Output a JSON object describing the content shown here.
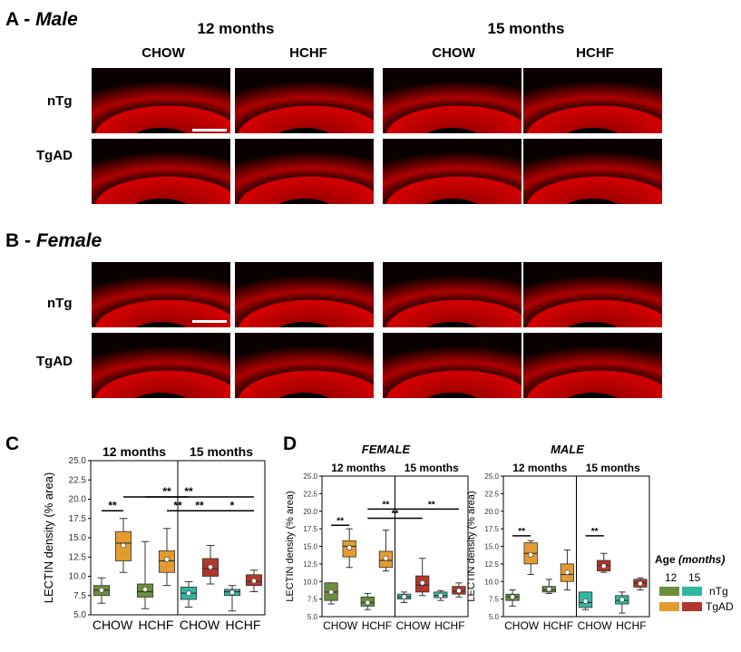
{
  "panelA": {
    "letter": "A -",
    "sex": "Male"
  },
  "panelB": {
    "letter": "B -",
    "sex": "Female"
  },
  "panelC": {
    "letter": "C"
  },
  "panelD": {
    "letter": "D"
  },
  "age_headers": [
    "12 months",
    "15 months"
  ],
  "diet_headers": [
    "CHOW",
    "HCHF",
    "CHOW",
    "HCHF"
  ],
  "row_labels": [
    "nTg",
    "TgAD"
  ],
  "colors": {
    "nTg12": "#6b8e3a",
    "TgAD12": "#e39b2f",
    "nTg15": "#2fb8a0",
    "TgAD15": "#b2362a",
    "tissue": "#c80000"
  },
  "legend": {
    "title": "Age",
    "title_unit": "(months)",
    "ages": [
      "12",
      "15"
    ],
    "genotypes": [
      "nTg",
      "TgAD"
    ]
  },
  "chart_data": [
    {
      "type": "box",
      "panel": "C",
      "ylabel": "LECTIN density (% area)",
      "ylim": [
        5,
        25
      ],
      "yticks": [
        "5.0",
        "7.5",
        "10.0",
        "12.5",
        "15.0",
        "17.5",
        "20.0",
        "22.5",
        "25.0"
      ],
      "facets": [
        "12 months",
        "15 months"
      ],
      "categories": [
        "CHOW",
        "HCHF",
        "CHOW",
        "HCHF"
      ],
      "boxes": [
        {
          "facet": "12 months",
          "category": "CHOW",
          "group": "nTg",
          "min": 6.5,
          "q1": 7.5,
          "median": 8.2,
          "q3": 8.8,
          "max": 9.8,
          "mean": 8.2
        },
        {
          "facet": "12 months",
          "category": "CHOW",
          "group": "TgAD",
          "min": 10.5,
          "q1": 12.0,
          "median": 14.3,
          "q3": 15.8,
          "max": 17.5,
          "mean": 14.0
        },
        {
          "facet": "12 months",
          "category": "HCHF",
          "group": "nTg",
          "min": 5.8,
          "q1": 7.3,
          "median": 8.0,
          "q3": 9.0,
          "max": 14.5,
          "mean": 8.3
        },
        {
          "facet": "12 months",
          "category": "HCHF",
          "group": "TgAD",
          "min": 8.8,
          "q1": 10.5,
          "median": 12.0,
          "q3": 13.3,
          "max": 16.2,
          "mean": 12.2
        },
        {
          "facet": "15 months",
          "category": "CHOW",
          "group": "nTg",
          "min": 6.0,
          "q1": 7.0,
          "median": 7.8,
          "q3": 8.6,
          "max": 9.3,
          "mean": 7.8
        },
        {
          "facet": "15 months",
          "category": "CHOW",
          "group": "TgAD",
          "min": 9.0,
          "q1": 10.0,
          "median": 11.0,
          "q3": 12.3,
          "max": 14.0,
          "mean": 11.2
        },
        {
          "facet": "15 months",
          "category": "HCHF",
          "group": "nTg",
          "min": 5.5,
          "q1": 7.5,
          "median": 8.0,
          "q3": 8.3,
          "max": 8.8,
          "mean": 7.9
        },
        {
          "facet": "15 months",
          "category": "HCHF",
          "group": "TgAD",
          "min": 8.0,
          "q1": 8.8,
          "median": 9.3,
          "q3": 10.2,
          "max": 10.8,
          "mean": 9.4
        }
      ],
      "significance": [
        {
          "label": "**",
          "y": 18.5,
          "from": 0,
          "to": 1
        },
        {
          "label": "**",
          "y": 20.3,
          "from": 2,
          "to": 4
        },
        {
          "label": "**",
          "y": 18.5,
          "from": 3,
          "to": 4
        },
        {
          "label": "**",
          "y": 20.3,
          "from": 1,
          "to": 7
        },
        {
          "label": "**",
          "y": 18.5,
          "from": 4,
          "to": 5
        },
        {
          "label": "*",
          "y": 18.5,
          "from": 5,
          "to": 7
        }
      ]
    },
    {
      "type": "box",
      "panel": "D",
      "title": "FEMALE",
      "ylabel": "LECTIN density (% area)",
      "ylim": [
        5,
        25
      ],
      "yticks": [
        "5.0",
        "7.5",
        "10.0",
        "12.5",
        "15.0",
        "17.5",
        "20.0",
        "22.5",
        "25.0"
      ],
      "facets": [
        "12 months",
        "15 months"
      ],
      "categories": [
        "CHOW",
        "HCHF",
        "CHOW",
        "HCHF"
      ],
      "boxes": [
        {
          "facet": "12 months",
          "category": "CHOW",
          "group": "nTg",
          "min": 6.8,
          "q1": 7.3,
          "median": 8.5,
          "q3": 9.8,
          "max": 9.8,
          "mean": 8.5
        },
        {
          "facet": "12 months",
          "category": "CHOW",
          "group": "TgAD",
          "min": 12.0,
          "q1": 13.5,
          "median": 15.0,
          "q3": 15.8,
          "max": 17.5,
          "mean": 14.8
        },
        {
          "facet": "12 months",
          "category": "HCHF",
          "group": "nTg",
          "min": 6.0,
          "q1": 6.5,
          "median": 7.0,
          "q3": 7.8,
          "max": 8.3,
          "mean": 7.0
        },
        {
          "facet": "12 months",
          "category": "HCHF",
          "group": "TgAD",
          "min": 11.5,
          "q1": 12.0,
          "median": 13.0,
          "q3": 14.3,
          "max": 17.3,
          "mean": 13.3
        },
        {
          "facet": "15 months",
          "category": "CHOW",
          "group": "nTg",
          "min": 7.0,
          "q1": 7.5,
          "median": 7.8,
          "q3": 8.2,
          "max": 8.5,
          "mean": 7.8
        },
        {
          "facet": "15 months",
          "category": "CHOW",
          "group": "TgAD",
          "min": 8.0,
          "q1": 8.5,
          "median": 9.5,
          "q3": 10.8,
          "max": 13.3,
          "mean": 9.8
        },
        {
          "facet": "15 months",
          "category": "HCHF",
          "group": "nTg",
          "min": 7.3,
          "q1": 7.7,
          "median": 8.0,
          "q3": 8.5,
          "max": 8.7,
          "mean": 8.0
        },
        {
          "facet": "15 months",
          "category": "HCHF",
          "group": "TgAD",
          "min": 7.8,
          "q1": 8.2,
          "median": 8.6,
          "q3": 9.3,
          "max": 9.8,
          "mean": 8.7
        }
      ],
      "significance": [
        {
          "label": "**",
          "y": 18.0,
          "from": 0,
          "to": 1
        },
        {
          "label": "**",
          "y": 19.0,
          "from": 2,
          "to": 5
        },
        {
          "label": "**",
          "y": 20.3,
          "from": 2,
          "to": 4
        },
        {
          "label": "**",
          "y": 20.3,
          "from": 4,
          "to": 7
        }
      ]
    },
    {
      "type": "box",
      "panel": "D",
      "title": "MALE",
      "ylabel": "LECTIN density (% area)",
      "ylim": [
        5,
        25
      ],
      "yticks": [
        "5.0",
        "7.5",
        "10.0",
        "12.5",
        "15.0",
        "17.5",
        "20.0",
        "22.5",
        "25.0"
      ],
      "facets": [
        "12 months",
        "15 months"
      ],
      "categories": [
        "CHOW",
        "HCHF",
        "CHOW",
        "HCHF"
      ],
      "boxes": [
        {
          "facet": "12 months",
          "category": "CHOW",
          "group": "nTg",
          "min": 6.5,
          "q1": 7.3,
          "median": 7.8,
          "q3": 8.2,
          "max": 8.8,
          "mean": 7.8
        },
        {
          "facet": "12 months",
          "category": "CHOW",
          "group": "TgAD",
          "min": 11.0,
          "q1": 12.5,
          "median": 14.0,
          "q3": 15.5,
          "max": 15.8,
          "mean": 13.8
        },
        {
          "facet": "12 months",
          "category": "HCHF",
          "group": "nTg",
          "min": 8.3,
          "q1": 8.5,
          "median": 8.8,
          "q3": 9.3,
          "max": 10.3,
          "mean": 8.9
        },
        {
          "facet": "12 months",
          "category": "HCHF",
          "group": "TgAD",
          "min": 8.8,
          "q1": 10.0,
          "median": 11.0,
          "q3": 12.5,
          "max": 14.5,
          "mean": 11.3
        },
        {
          "facet": "15 months",
          "category": "CHOW",
          "group": "nTg",
          "min": 6.0,
          "q1": 6.3,
          "median": 7.0,
          "q3": 8.5,
          "max": 8.5,
          "mean": 7.2
        },
        {
          "facet": "15 months",
          "category": "CHOW",
          "group": "TgAD",
          "min": 11.3,
          "q1": 11.5,
          "median": 12.3,
          "q3": 13.0,
          "max": 14.0,
          "mean": 12.2
        },
        {
          "facet": "15 months",
          "category": "HCHF",
          "group": "nTg",
          "min": 5.5,
          "q1": 6.8,
          "median": 7.3,
          "q3": 8.0,
          "max": 8.5,
          "mean": 7.4
        },
        {
          "facet": "15 months",
          "category": "HCHF",
          "group": "TgAD",
          "min": 8.8,
          "q1": 9.2,
          "median": 9.8,
          "q3": 10.3,
          "max": 10.5,
          "mean": 9.7
        }
      ],
      "significance": [
        {
          "label": "**",
          "y": 16.5,
          "from": 0,
          "to": 1
        },
        {
          "label": "**",
          "y": 16.5,
          "from": 4,
          "to": 5
        }
      ]
    }
  ]
}
